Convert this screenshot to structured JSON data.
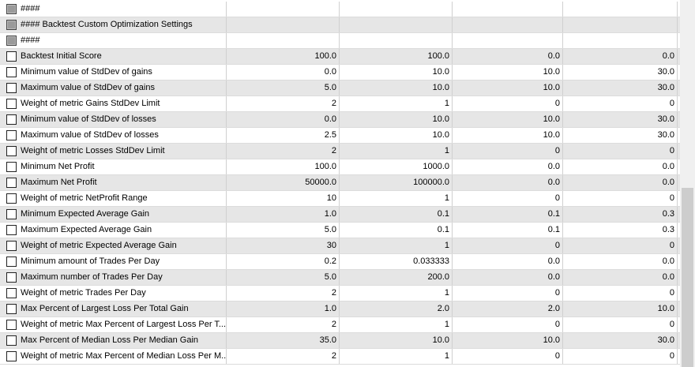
{
  "rows": [
    {
      "label": "####",
      "checkbox": "indeterminate",
      "values": []
    },
    {
      "label": "#### Backtest Custom Optimization Settings",
      "checkbox": "indeterminate",
      "values": []
    },
    {
      "label": "####",
      "checkbox": "indeterminate",
      "values": []
    },
    {
      "label": "Backtest Initial Score",
      "checkbox": "unchecked",
      "values": [
        "100.0",
        "100.0",
        "0.0",
        "0.0"
      ]
    },
    {
      "label": "Minimum value of StdDev of gains",
      "checkbox": "unchecked",
      "values": [
        "0.0",
        "10.0",
        "10.0",
        "30.0"
      ]
    },
    {
      "label": "Maximum value of StdDev of gains",
      "checkbox": "unchecked",
      "values": [
        "5.0",
        "10.0",
        "10.0",
        "30.0"
      ]
    },
    {
      "label": "Weight of metric Gains StdDev Limit",
      "checkbox": "unchecked",
      "values": [
        "2",
        "1",
        "0",
        "0"
      ]
    },
    {
      "label": "Minimum value of StdDev of losses",
      "checkbox": "unchecked",
      "values": [
        "0.0",
        "10.0",
        "10.0",
        "30.0"
      ]
    },
    {
      "label": "Maximum value of StdDev of losses",
      "checkbox": "unchecked",
      "values": [
        "2.5",
        "10.0",
        "10.0",
        "30.0"
      ]
    },
    {
      "label": "Weight of metric Losses StdDev Limit",
      "checkbox": "unchecked",
      "values": [
        "2",
        "1",
        "0",
        "0"
      ]
    },
    {
      "label": "Minimum Net Profit",
      "checkbox": "unchecked",
      "values": [
        "100.0",
        "1000.0",
        "0.0",
        "0.0"
      ]
    },
    {
      "label": "Maximum Net Profit",
      "checkbox": "unchecked",
      "values": [
        "50000.0",
        "100000.0",
        "0.0",
        "0.0"
      ]
    },
    {
      "label": "Weight of metric NetProfit Range",
      "checkbox": "unchecked",
      "values": [
        "10",
        "1",
        "0",
        "0"
      ]
    },
    {
      "label": "Minimum Expected Average Gain",
      "checkbox": "unchecked",
      "values": [
        "1.0",
        "0.1",
        "0.1",
        "0.3"
      ]
    },
    {
      "label": "Maximum Expected Average Gain",
      "checkbox": "unchecked",
      "values": [
        "5.0",
        "0.1",
        "0.1",
        "0.3"
      ]
    },
    {
      "label": "Weight of metric Expected Average Gain",
      "checkbox": "unchecked",
      "values": [
        "30",
        "1",
        "0",
        "0"
      ]
    },
    {
      "label": "Minimum amount of Trades Per Day",
      "checkbox": "unchecked",
      "values": [
        "0.2",
        "0.033333",
        "0.0",
        "0.0"
      ]
    },
    {
      "label": "Maximum number of Trades Per Day",
      "checkbox": "unchecked",
      "values": [
        "5.0",
        "200.0",
        "0.0",
        "0.0"
      ]
    },
    {
      "label": "Weight of metric Trades Per Day",
      "checkbox": "unchecked",
      "values": [
        "2",
        "1",
        "0",
        "0"
      ]
    },
    {
      "label": "Max Percent of Largest Loss Per Total Gain",
      "checkbox": "unchecked",
      "values": [
        "1.0",
        "2.0",
        "2.0",
        "10.0"
      ]
    },
    {
      "label": "Weight of metric Max Percent of Largest Loss Per T...",
      "checkbox": "unchecked",
      "values": [
        "2",
        "1",
        "0",
        "0"
      ]
    },
    {
      "label": "Max Percent of Median Loss Per Median Gain",
      "checkbox": "unchecked",
      "values": [
        "35.0",
        "10.0",
        "10.0",
        "30.0"
      ]
    },
    {
      "label": "Weight of metric Max Percent of Median Loss Per M...",
      "checkbox": "unchecked",
      "values": [
        "2",
        "1",
        "0",
        "0"
      ]
    }
  ]
}
